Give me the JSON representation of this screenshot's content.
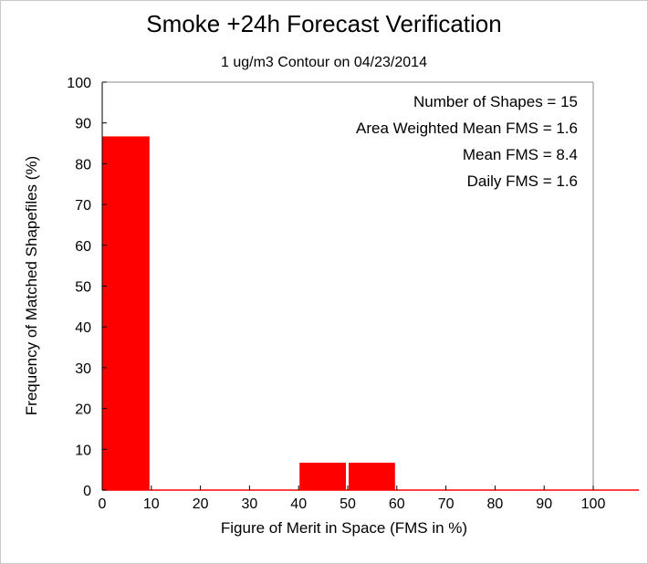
{
  "chart_data": {
    "type": "bar",
    "title": "Smoke +24h Forecast Verification",
    "subtitle": "1 ug/m3 Contour on 04/23/2014",
    "xlabel": "Figure of Merit in Space (FMS in %)",
    "ylabel": "Frequency of Matched Shapefiles (%)",
    "xlim": [
      0,
      100
    ],
    "ylim": [
      0,
      100
    ],
    "xticks": [
      "0",
      "10",
      "20",
      "30",
      "40",
      "50",
      "60",
      "70",
      "80",
      "90",
      "100"
    ],
    "yticks": [
      "0",
      "10",
      "20",
      "30",
      "40",
      "50",
      "60",
      "70",
      "80",
      "90",
      "100"
    ],
    "bins": [
      {
        "x0": 0,
        "x1": 10,
        "value": 86.7
      },
      {
        "x0": 10,
        "x1": 20,
        "value": 0
      },
      {
        "x0": 20,
        "x1": 30,
        "value": 0
      },
      {
        "x0": 30,
        "x1": 40,
        "value": 0
      },
      {
        "x0": 40,
        "x1": 50,
        "value": 6.7
      },
      {
        "x0": 50,
        "x1": 60,
        "value": 6.7
      },
      {
        "x0": 60,
        "x1": 70,
        "value": 0
      },
      {
        "x0": 70,
        "x1": 80,
        "value": 0
      },
      {
        "x0": 80,
        "x1": 90,
        "value": 0
      },
      {
        "x0": 90,
        "x1": 100,
        "value": 0
      }
    ],
    "bar_color": "#ff0000",
    "grid": false,
    "annotations": [
      "Number of Shapes = 15",
      "Area Weighted Mean FMS = 1.6",
      "Mean FMS = 8.4",
      "Daily FMS = 1.6"
    ]
  }
}
